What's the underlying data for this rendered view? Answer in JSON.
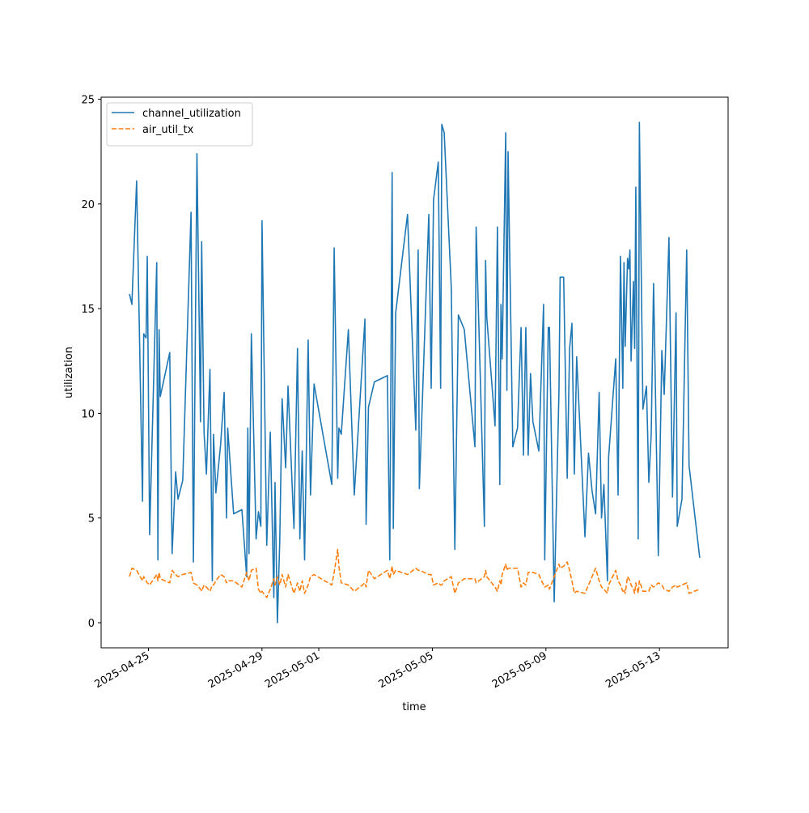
{
  "chart_data": {
    "type": "line",
    "xlabel": "time",
    "ylabel": "utilization",
    "legend": "upper left",
    "xlim": [
      "2025-04-23T08:00",
      "2025-05-15T10:00"
    ],
    "xticks": [
      "2025-04-25",
      "2025-04-29",
      "2025-05-01",
      "2025-05-05",
      "2025-05-09",
      "2025-05-13"
    ],
    "ylim": [
      -1.2,
      25.1
    ],
    "yticks": [
      0,
      5,
      10,
      15,
      20,
      25
    ],
    "x": [
      "2025-04-24T08:00",
      "2025-04-24T10:00",
      "2025-04-24T14:00",
      "2025-04-24T19:00",
      "2025-04-24T20:00",
      "2025-04-24T22:00",
      "2025-04-24T23:00",
      "2025-04-25T01:00",
      "2025-04-25T07:00",
      "2025-04-25T08:00",
      "2025-04-25T09:00",
      "2025-04-25T10:00",
      "2025-04-25T18:00",
      "2025-04-25T20:00",
      "2025-04-25T23:00",
      "2025-04-26T01:00",
      "2025-04-26T05:00",
      "2025-04-26T12:00",
      "2025-04-26T14:00",
      "2025-04-26T17:00",
      "2025-04-26T20:00",
      "2025-04-26T21:00",
      "2025-04-26T23:00",
      "2025-04-27T01:00",
      "2025-04-27T04:00",
      "2025-04-27T06:00",
      "2025-04-27T07:00",
      "2025-04-27T09:00",
      "2025-04-27T13:00",
      "2025-04-27T16:00",
      "2025-04-27T18:00",
      "2025-04-27T19:00",
      "2025-04-28T00:00",
      "2025-04-28T07:00",
      "2025-04-28T11:00",
      "2025-04-28T12:00",
      "2025-04-28T13:00",
      "2025-04-28T15:00",
      "2025-04-28T19:00",
      "2025-04-28T21:00",
      "2025-04-28T23:00",
      "2025-04-29T00:00",
      "2025-04-29T04:00",
      "2025-04-29T07:00",
      "2025-04-29T10:00",
      "2025-04-29T11:00",
      "2025-04-29T13:00",
      "2025-04-29T15:00",
      "2025-04-29T17:00",
      "2025-04-29T20:00",
      "2025-04-29T22:00",
      "2025-04-30T03:00",
      "2025-04-30T06:00",
      "2025-04-30T08:00",
      "2025-04-30T10:00",
      "2025-04-30T12:00",
      "2025-04-30T15:00",
      "2025-04-30T17:00",
      "2025-04-30T20:00",
      "2025-05-01T11:00",
      "2025-05-01T13:00",
      "2025-05-01T16:00",
      "2025-05-01T17:00",
      "2025-05-01T19:00",
      "2025-05-02T01:00",
      "2025-05-02T06:00",
      "2025-05-02T15:00",
      "2025-05-02T16:00",
      "2025-05-02T18:00",
      "2025-05-02T23:00",
      "2025-05-03T10:00",
      "2025-05-03T12:00",
      "2025-05-03T14:00",
      "2025-05-03T15:00",
      "2025-05-03T17:00",
      "2025-05-04T03:00",
      "2025-05-04T10:00",
      "2025-05-04T12:00",
      "2025-05-04T13:00",
      "2025-05-04T21:00",
      "2025-05-04T23:00",
      "2025-05-05T01:00",
      "2025-05-05T05:00",
      "2025-05-05T07:00",
      "2025-05-05T08:00",
      "2025-05-05T10:00",
      "2025-05-05T16:00",
      "2025-05-05T19:00",
      "2025-05-05T22:00",
      "2025-05-06T03:00",
      "2025-05-06T12:00",
      "2025-05-06T13:00",
      "2025-05-06T20:00",
      "2025-05-06T21:00",
      "2025-05-06T22:00",
      "2025-05-07T05:00",
      "2025-05-07T07:00",
      "2025-05-07T09:00",
      "2025-05-07T10:00",
      "2025-05-07T11:00",
      "2025-05-07T14:00",
      "2025-05-07T15:00",
      "2025-05-07T16:00",
      "2025-05-07T20:00",
      "2025-05-08T00:00",
      "2025-05-08T03:00",
      "2025-05-08T05:00",
      "2025-05-08T07:00",
      "2025-05-08T09:00",
      "2025-05-08T11:00",
      "2025-05-08T13:00",
      "2025-05-08T18:00",
      "2025-05-08T22:00",
      "2025-05-08T23:00",
      "2025-05-09T02:00",
      "2025-05-09T03:00",
      "2025-05-09T07:00",
      "2025-05-09T11:00",
      "2025-05-09T12:00",
      "2025-05-09T15:00",
      "2025-05-09T18:00",
      "2025-05-09T20:00",
      "2025-05-09T22:00",
      "2025-05-10T00:00",
      "2025-05-10T02:00",
      "2025-05-10T09:00",
      "2025-05-10T12:00",
      "2025-05-10T15:00",
      "2025-05-10T18:00",
      "2025-05-10T21:00",
      "2025-05-10T23:00",
      "2025-05-11T01:00",
      "2025-05-11T04:00",
      "2025-05-11T05:00",
      "2025-05-11T11:00",
      "2025-05-11T13:00",
      "2025-05-11T15:00",
      "2025-05-11T17:00",
      "2025-05-11T18:00",
      "2025-05-11T19:00",
      "2025-05-11T21:00",
      "2025-05-11T22:00",
      "2025-05-11T23:00",
      "2025-05-12T00:00",
      "2025-05-12T02:00",
      "2025-05-12T03:00",
      "2025-05-12T04:00",
      "2025-05-12T06:00",
      "2025-05-12T07:00",
      "2025-05-12T10:00",
      "2025-05-12T13:00",
      "2025-05-12T15:00",
      "2025-05-12T17:00",
      "2025-05-12T19:00",
      "2025-05-12T23:00",
      "2025-05-13T02:00",
      "2025-05-13T04:00",
      "2025-05-13T08:00",
      "2025-05-13T11:00",
      "2025-05-13T14:00",
      "2025-05-13T15:00",
      "2025-05-13T19:00",
      "2025-05-13T23:00",
      "2025-05-14T01:00",
      "2025-05-14T10:00"
    ],
    "series": [
      {
        "name": "channel_utilization",
        "color": "#1f77b4",
        "linestyle": "solid",
        "values": [
          15.7,
          15.2,
          21.1,
          5.8,
          13.8,
          13.6,
          17.5,
          4.2,
          17.2,
          3.0,
          14.0,
          10.8,
          12.9,
          3.3,
          7.2,
          5.9,
          6.8,
          19.6,
          2.9,
          22.4,
          9.6,
          18.2,
          9.1,
          7.1,
          12.1,
          2.0,
          9.0,
          6.2,
          8.5,
          11.0,
          5.0,
          9.3,
          5.2,
          5.4,
          2.2,
          9.3,
          3.3,
          13.8,
          4.0,
          5.3,
          4.6,
          19.2,
          3.7,
          9.1,
          1.2,
          6.7,
          0.0,
          3.9,
          10.7,
          7.4,
          11.3,
          4.5,
          13.1,
          4.0,
          8.2,
          3.0,
          13.5,
          6.1,
          11.4,
          6.6,
          17.9,
          6.9,
          9.3,
          9.0,
          14.0,
          6.1,
          14.5,
          4.7,
          10.3,
          11.5,
          11.8,
          3.0,
          21.5,
          4.5,
          14.8,
          19.5,
          9.2,
          17.8,
          6.4,
          19.5,
          11.2,
          20.2,
          22.0,
          11.2,
          23.8,
          23.4,
          16.0,
          3.5,
          14.7,
          14.0,
          8.4,
          18.9,
          4.6,
          17.3,
          14.6,
          9.4,
          18.9,
          6.6,
          15.2,
          12.6,
          23.4,
          11.1,
          22.5,
          8.4,
          9.3,
          14.1,
          8.0,
          14.1,
          8.0,
          11.9,
          9.6,
          8.2,
          15.2,
          3.0,
          14.1,
          14.1,
          1.0,
          11.0,
          16.5,
          16.5,
          6.9,
          13.1,
          14.3,
          7.1,
          12.7,
          4.1,
          8.1,
          6.3,
          5.2,
          11.0,
          5.0,
          6.6,
          2.0,
          7.9,
          12.6,
          6.1,
          17.5,
          11.2,
          17.2,
          13.2,
          17.4,
          16.9,
          17.8,
          12.5,
          16.3,
          13.1,
          20.8,
          4.0,
          23.9,
          10.2,
          11.3,
          6.7,
          9.0,
          16.2,
          3.2,
          13.0,
          10.9,
          18.4,
          6.0,
          14.8,
          4.6,
          5.9,
          17.8,
          7.5,
          3.1
        ]
      },
      {
        "name": "air_util_tx",
        "color": "#ff7f0e",
        "linestyle": "dashed",
        "values": [
          2.2,
          2.6,
          2.5,
          2.0,
          2.2,
          2.0,
          1.9,
          1.8,
          2.3,
          2.0,
          2.4,
          2.1,
          1.9,
          2.5,
          2.3,
          2.2,
          2.3,
          2.4,
          1.9,
          1.8,
          1.6,
          1.5,
          1.8,
          1.7,
          1.5,
          1.8,
          1.8,
          2.0,
          2.3,
          2.2,
          1.9,
          2.0,
          2.0,
          1.7,
          2.4,
          2.2,
          2.0,
          2.5,
          2.6,
          1.6,
          1.4,
          1.5,
          1.2,
          1.6,
          2.1,
          1.8,
          2.2,
          1.8,
          2.3,
          1.7,
          2.3,
          1.4,
          1.9,
          1.5,
          2.0,
          1.4,
          1.8,
          2.2,
          2.3,
          1.8,
          2.4,
          3.5,
          2.7,
          1.9,
          1.8,
          1.5,
          1.9,
          1.7,
          2.5,
          2.1,
          2.5,
          2.1,
          2.7,
          2.3,
          2.5,
          2.3,
          2.6,
          2.5,
          2.5,
          2.3,
          2.3,
          1.8,
          1.9,
          1.8,
          1.8,
          2.0,
          2.2,
          1.4,
          1.9,
          2.1,
          2.1,
          1.9,
          2.2,
          2.5,
          2.2,
          1.7,
          1.5,
          2.0,
          1.8,
          2.3,
          2.8,
          2.5,
          2.6,
          2.6,
          2.6,
          1.7,
          1.9,
          1.8,
          2.4,
          2.4,
          2.4,
          2.3,
          1.8,
          1.7,
          1.8,
          1.6,
          2.2,
          2.8,
          2.6,
          2.7,
          2.9,
          2.5,
          2.0,
          1.4,
          1.5,
          1.4,
          1.8,
          2.2,
          2.6,
          2.0,
          1.7,
          1.6,
          1.4,
          1.8,
          2.5,
          2.0,
          1.8,
          1.5,
          1.6,
          1.4,
          2.2,
          2.1,
          2.0,
          1.8,
          1.6,
          1.4,
          1.9,
          1.4,
          2.0,
          1.5,
          1.5,
          1.5,
          1.8,
          1.7,
          1.9,
          1.8,
          1.6,
          1.5,
          1.7,
          1.8,
          1.7,
          1.8,
          1.9,
          1.4,
          1.6
        ]
      }
    ]
  }
}
